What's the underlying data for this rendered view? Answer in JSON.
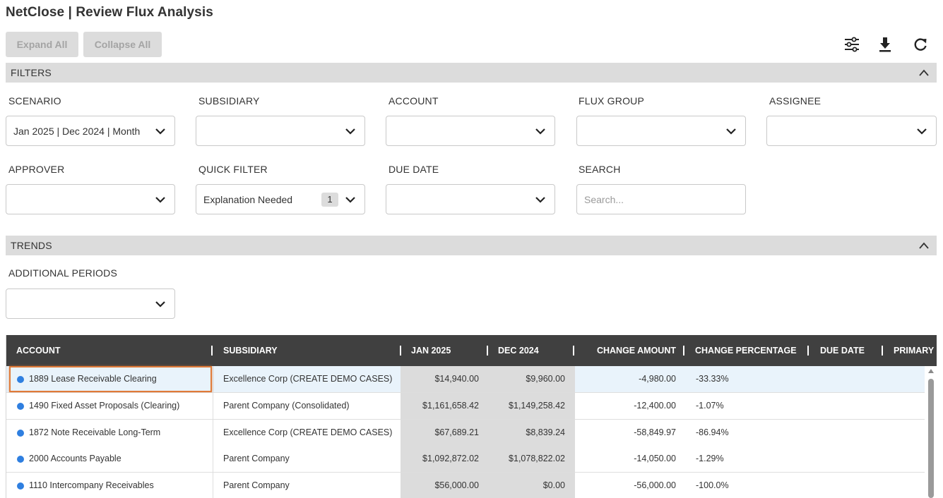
{
  "header": {
    "title": "NetClose | Review Flux Analysis"
  },
  "toolbar": {
    "expand_label": "Expand All",
    "collapse_label": "Collapse All",
    "icons": [
      "sliders-icon",
      "download-icon",
      "refresh-icon"
    ]
  },
  "filters": {
    "section_label": "FILTERS",
    "scenario": {
      "label": "SCENARIO",
      "value": "Jan 2025 | Dec 2024 | Month"
    },
    "subsidiary": {
      "label": "SUBSIDIARY",
      "value": ""
    },
    "account": {
      "label": "ACCOUNT",
      "value": ""
    },
    "flux_group": {
      "label": "FLUX GROUP",
      "value": ""
    },
    "assignee": {
      "label": "ASSIGNEE",
      "value": ""
    },
    "approver": {
      "label": "APPROVER",
      "value": ""
    },
    "quick_filter": {
      "label": "QUICK FILTER",
      "value": "Explanation Needed",
      "count": "1"
    },
    "due_date": {
      "label": "DUE DATE",
      "value": ""
    },
    "search": {
      "label": "SEARCH",
      "placeholder": "Search..."
    }
  },
  "trends": {
    "section_label": "TRENDS",
    "additional_periods": {
      "label": "ADDITIONAL PERIODS",
      "value": ""
    }
  },
  "grid": {
    "columns": [
      "ACCOUNT",
      "SUBSIDIARY",
      "JAN 2025",
      "DEC 2024",
      "CHANGE AMOUNT",
      "CHANGE PERCENTAGE",
      "DUE DATE",
      "PRIMARY I"
    ],
    "rows": [
      {
        "account": "1889 Lease Receivable Clearing",
        "subsidiary": "Excellence Corp (CREATE DEMO CASES)",
        "jan": "$14,940.00",
        "dec": "$9,960.00",
        "change_amount": "-4,980.00",
        "change_pct": "-33.33%",
        "due_date": "",
        "selected": true
      },
      {
        "account": "1490 Fixed Asset Proposals (Clearing)",
        "subsidiary": "Parent Company (Consolidated)",
        "jan": "$1,161,658.42",
        "dec": "$1,149,258.42",
        "change_amount": "-12,400.00",
        "change_pct": "-1.07%",
        "due_date": ""
      },
      {
        "account": "1872 Note Receivable Long-Term",
        "subsidiary": "Excellence Corp (CREATE DEMO CASES)",
        "jan": "$67,689.21",
        "dec": "$8,839.24",
        "change_amount": "-58,849.97",
        "change_pct": "-86.94%",
        "due_date": ""
      },
      {
        "account": "2000 Accounts Payable",
        "subsidiary": "Parent Company",
        "jan": "$1,092,872.02",
        "dec": "$1,078,822.02",
        "change_amount": "-14,050.00",
        "change_pct": "-1.29%",
        "due_date": ""
      },
      {
        "account": "1110 Intercompany Receivables",
        "subsidiary": "Parent Company",
        "jan": "$56,000.00",
        "dec": "$0.00",
        "change_amount": "-56,000.00",
        "change_pct": "-100.0%",
        "due_date": ""
      }
    ]
  },
  "colors": {
    "header_bg": "#404040",
    "section_bg": "#dcdcdc",
    "status_dot": "#2f7fe0",
    "selection_outline": "#e07b39",
    "selected_row": "#e9f3fb"
  }
}
